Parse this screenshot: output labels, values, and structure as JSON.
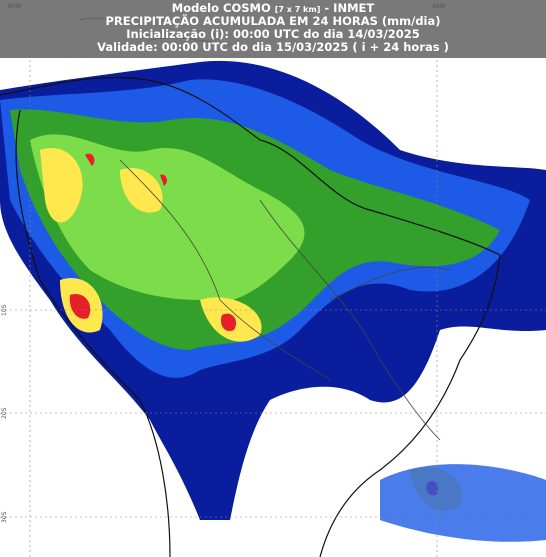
{
  "header": {
    "model": "Modelo COSMO",
    "resolution": "[7 x 7 km]",
    "source": "- INMET",
    "title": "PRECIPITAÇÃO ACUMULADA EM 24 HORAS (mm/dia)",
    "initialization": "Inicialização (i): 00:00 UTC do dia 14/03/2025",
    "validity": "Validade: 00:00 UTC do dia 15/03/2025 ( i + 24 horas )"
  },
  "grid_labels": {
    "longitudes": [
      "80W",
      "40W"
    ],
    "latitudes": [
      "10S",
      "20S",
      "30S"
    ]
  }
}
